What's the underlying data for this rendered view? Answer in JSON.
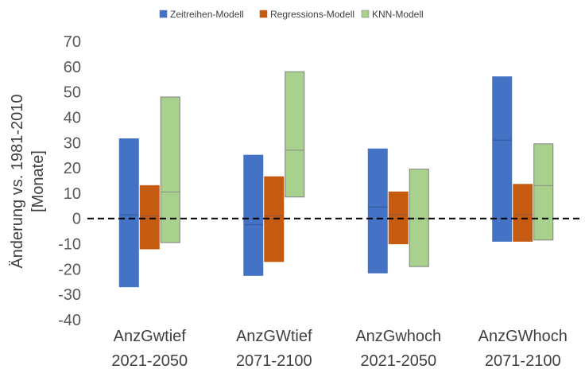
{
  "chart_data": {
    "type": "bar",
    "subtype": "floating-range-with-median",
    "ylabel_lines": [
      "Änderung vs. 1981-2010",
      "[Monate]"
    ],
    "ylim": [
      -40,
      70
    ],
    "yticks": [
      -40,
      -30,
      -20,
      -10,
      0,
      10,
      20,
      30,
      40,
      50,
      60,
      70
    ],
    "grid": false,
    "legend_position": "top",
    "reference_line": {
      "y": 0,
      "style": "dashed"
    },
    "categories": [
      {
        "line1": "AnzGwtief",
        "line2": "2021-2050"
      },
      {
        "line1": "AnzGWtief",
        "line2": "2071-2100"
      },
      {
        "line1": "AnzGwhoch",
        "line2": "2021-2050"
      },
      {
        "line1": "AnzGWhoch",
        "line2": "2071-2100"
      }
    ],
    "series": [
      {
        "name": "Zeitreihen-Modell",
        "color": "#4472c4",
        "ranges": [
          {
            "min": -27,
            "mid": 1.5,
            "max": 31.5
          },
          {
            "min": -22.5,
            "mid": -2.5,
            "max": 25
          },
          {
            "min": -21.5,
            "mid": 4.5,
            "max": 27.5
          },
          {
            "min": -9,
            "mid": 31,
            "max": 56
          }
        ]
      },
      {
        "name": "Regressions-Modell",
        "color": "#c55a11",
        "ranges": [
          {
            "min": -12,
            "mid": 1,
            "max": 13
          },
          {
            "min": -17,
            "mid": 1,
            "max": 16.5
          },
          {
            "min": -10,
            "mid": 1.5,
            "max": 10.5
          },
          {
            "min": -9,
            "mid": 1.5,
            "max": 13.5
          }
        ]
      },
      {
        "name": "KNN-Modell",
        "color": "#a9d18e",
        "ranges": [
          {
            "min": -9.5,
            "mid": 10.5,
            "max": 48
          },
          {
            "min": 8.5,
            "mid": 27,
            "max": 58
          },
          {
            "min": -19,
            "mid": 0,
            "max": 19.5
          },
          {
            "min": -8.5,
            "mid": 13,
            "max": 29.5
          }
        ]
      }
    ]
  }
}
